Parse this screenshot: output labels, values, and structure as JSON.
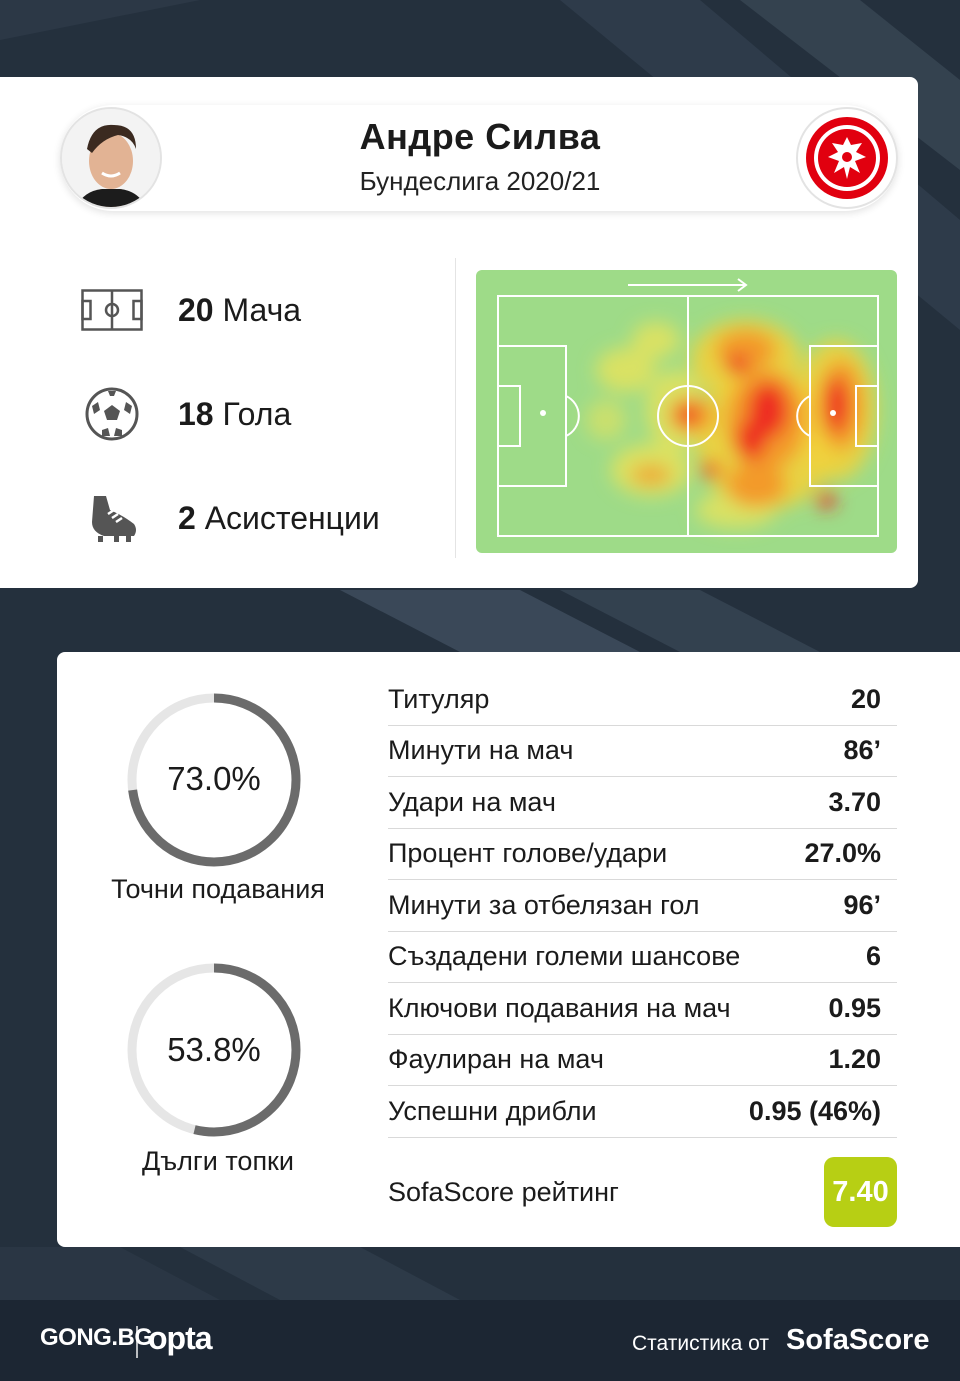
{
  "player": {
    "name": "Андре Силва",
    "competition": "Бундеслига 2020/21"
  },
  "summary": [
    {
      "icon": "pitch-icon",
      "value": "20",
      "label": "Мача"
    },
    {
      "icon": "ball-icon",
      "value": "18",
      "label": "Гола"
    },
    {
      "icon": "boot-icon",
      "value": "2",
      "label": "Асистенции"
    }
  ],
  "rings": [
    {
      "value": "73.0%",
      "fraction": 0.73,
      "label": "Точни подавания"
    },
    {
      "value": "53.8%",
      "fraction": 0.538,
      "label": "Дълги топки"
    }
  ],
  "stats": [
    {
      "label": "Титуляр",
      "value": "20"
    },
    {
      "label": "Минути на мач",
      "value": "86’"
    },
    {
      "label": "Удари на мач",
      "value": "3.70"
    },
    {
      "label": "Процент голове/удари",
      "value": "27.0%"
    },
    {
      "label": "Минути за отбелязан гол",
      "value": "96’"
    },
    {
      "label": "Създадени големи шансове",
      "value": "6"
    },
    {
      "label": "Ключови подавания на мач",
      "value": "0.95"
    },
    {
      "label": "Фаулиран на мач",
      "value": "1.20"
    },
    {
      "label": "Успешни дрибли",
      "value": "0.95 (46%)"
    }
  ],
  "rating": {
    "label": "SofaScore рейтинг",
    "value": "7.40",
    "color": "#b7cf14"
  },
  "footer": {
    "gong": "GONG.BG",
    "opta": "opta",
    "stats_by": "Статистика от",
    "sofascore": "SofaScore"
  },
  "colors": {
    "background": "#24303d",
    "ring_fill": "#6b6b6b",
    "ring_track": "#e6e6e6",
    "pitch": "#9edb88"
  }
}
